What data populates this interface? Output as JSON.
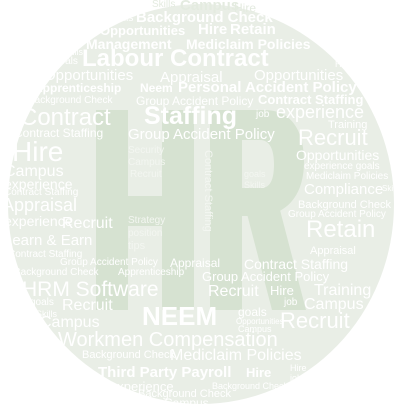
{
  "logo": {
    "letters": "HR",
    "fill": "#d6e2d1",
    "background": "#e9eee6",
    "word_color": "#ffffff"
  },
  "words": [
    "Skills",
    "Campus",
    "Hire",
    "Skills",
    "Background Check",
    "Opportunities",
    "Hire",
    "Retain",
    "Management",
    "Mediclaim Policies",
    "Skills",
    "goals",
    "Labour Contract",
    "Hire",
    "Opportunities",
    "Appraisal",
    "Opportunities",
    "Apprenticeship",
    "Neem",
    "Personal Accident Policy",
    "Background Check",
    "Group Accident Policy",
    "Contract Staffing",
    "Contract",
    "Staffing",
    "job",
    "experience",
    "Contract Staffing",
    "Group Accident Policy",
    "Training",
    "Recruit",
    "Hire",
    "Security",
    "Opportunities",
    "Campus",
    "Campus",
    "goals",
    "experience goals",
    "experience",
    "Recruit",
    "Skills",
    "Mediclaim Policies",
    "Contract Staffing",
    "Compliance",
    "Skills",
    "Appraisal",
    "Background Check",
    "experience",
    "Strategy",
    "Group Accident Policy",
    "Recruit",
    "position",
    "Retain",
    "Learn & Earn",
    "tips",
    "Appraisal",
    "Contract Staffing",
    "Group Accident Policy",
    "Appraisal",
    "Contract Staffing",
    "Background Check",
    "Apprenticeship",
    "Group Accident Policy",
    "HRM Software",
    "Recruit",
    "Hire",
    "Training",
    "goals",
    "Recruit",
    "job",
    "Campus",
    "Skills",
    "NEEM",
    "goals",
    "Recruit",
    "Campus",
    "Opportunities",
    "Campus",
    "Workmen Compensation",
    "Background Check",
    "Mediclaim Policies",
    "job",
    "Third Party Payroll",
    "Hire",
    "Hire",
    "experience",
    "Background Check",
    "job",
    "Background Check",
    "Campus",
    "Contract Staffing"
  ]
}
